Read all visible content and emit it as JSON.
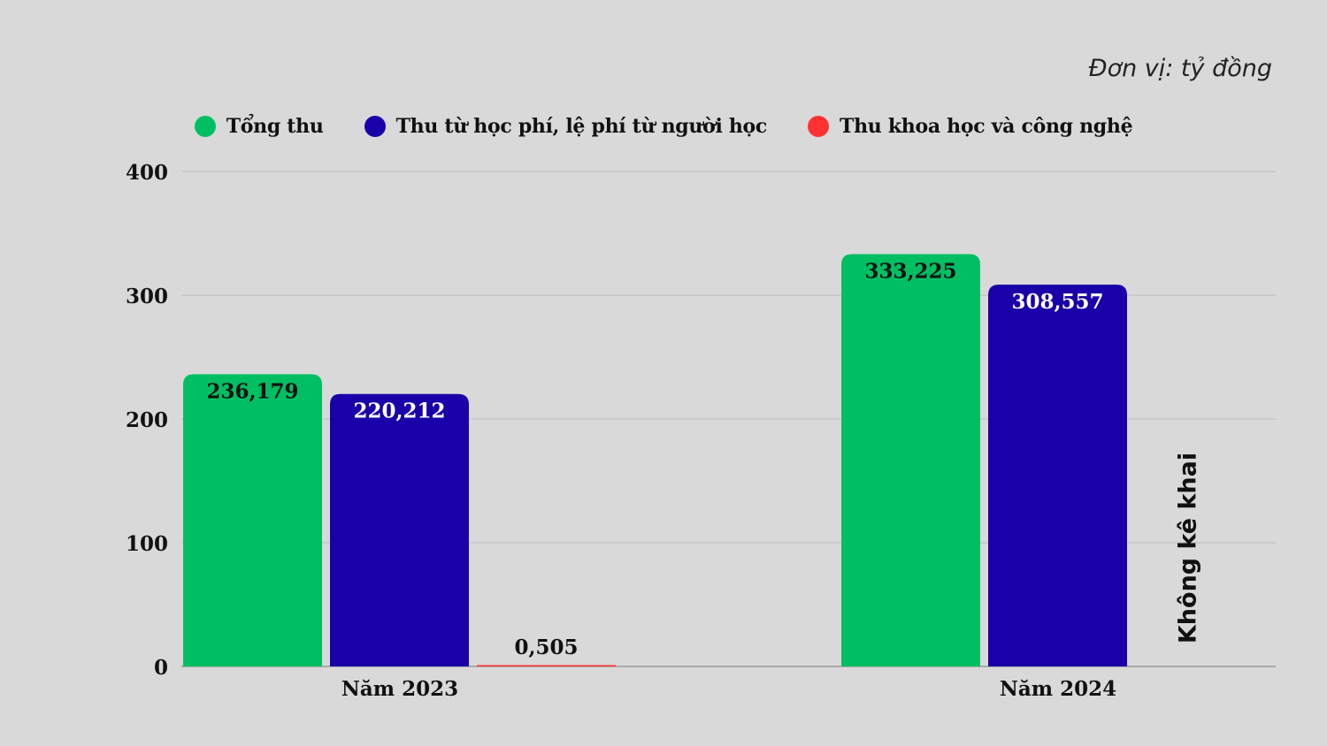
{
  "unit_note": "Đơn vị: tỷ đồng",
  "colors": {
    "background": "#d9d9d9",
    "series_total": "#00bf63",
    "series_tuition": "#1a00a8",
    "series_science": "#ff3131",
    "grid": "#bdbdbd"
  },
  "chart_data": {
    "type": "bar",
    "categories": [
      "Năm 2023",
      "Năm 2024"
    ],
    "ylim": [
      0,
      400
    ],
    "yticks": [
      0,
      100,
      200,
      300,
      400
    ],
    "grid": true,
    "legend_position": "top-center",
    "series": [
      {
        "name": "Tổng thu",
        "values": [
          236.179,
          333.225
        ],
        "labels": [
          "236,179",
          "333,225"
        ],
        "color": "#00bf63"
      },
      {
        "name": "Thu từ học phí, lệ phí từ người học",
        "values": [
          220.212,
          308.557
        ],
        "labels": [
          "220,212",
          "308,557"
        ],
        "color": "#1a00a8"
      },
      {
        "name": "Thu khoa học và công nghệ",
        "values": [
          0.505,
          null
        ],
        "labels": [
          "0,505",
          "Không kê khai"
        ],
        "color": "#ff3131"
      }
    ]
  }
}
